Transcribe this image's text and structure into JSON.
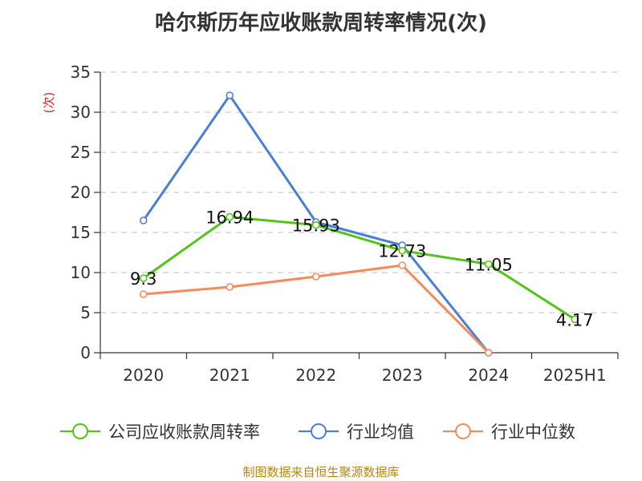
{
  "chart_data": {
    "type": "line",
    "title": "哈尔斯历年应收账款周转率情况(次)",
    "ylabel": "(次)",
    "xlabel": "",
    "ylim": [
      0,
      35
    ],
    "yticks": [
      0,
      5,
      10,
      15,
      20,
      25,
      30,
      35
    ],
    "categories": [
      "2020",
      "2021",
      "2022",
      "2023",
      "2024",
      "2025H1"
    ],
    "grid": true,
    "legend_position": "bottom",
    "series": [
      {
        "name": "公司应收账款周转率",
        "color": "#52c41a",
        "values": [
          9.3,
          16.94,
          15.93,
          12.73,
          11.05,
          4.17
        ],
        "labels": [
          "9.3",
          "16.94",
          "15.93",
          "12.73",
          "11.05",
          "4.17"
        ]
      },
      {
        "name": "行业均值",
        "color": "#4a7fd8",
        "values": [
          16.5,
          32.1,
          16.3,
          13.4,
          0.0,
          null
        ]
      },
      {
        "name": "行业中位数",
        "color": "#f58a5a",
        "values": [
          7.3,
          8.2,
          9.5,
          10.9,
          0.0,
          null
        ]
      }
    ]
  },
  "footer": "制图数据来自恒生聚源数据库"
}
